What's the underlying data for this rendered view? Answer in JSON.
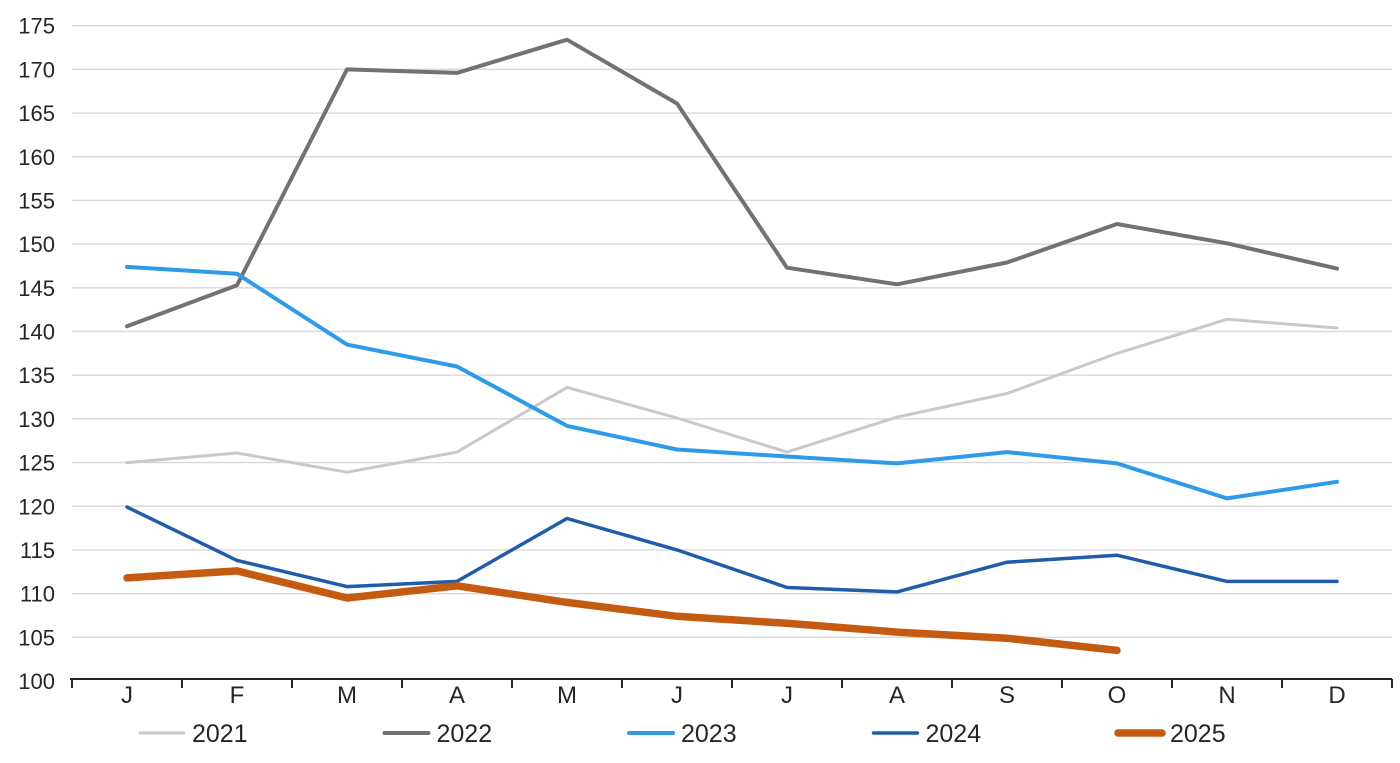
{
  "chart_data": {
    "type": "line",
    "title": "",
    "xlabel": "",
    "ylabel": "",
    "categories": [
      "J",
      "F",
      "M",
      "A",
      "M",
      "J",
      "J",
      "A",
      "S",
      "O",
      "N",
      "D"
    ],
    "y_axis": {
      "min": 100,
      "max": 175,
      "step": 5,
      "tick_labels": [
        "100",
        "105",
        "110",
        "115",
        "120",
        "125",
        "130",
        "135",
        "140",
        "145",
        "150",
        "155",
        "160",
        "165",
        "170",
        "175"
      ]
    },
    "series": [
      {
        "name": "2021",
        "color": "#C9C9C9",
        "line_width": 3,
        "values": [
          125.0,
          126.1,
          123.9,
          126.2,
          133.6,
          130.1,
          126.2,
          130.2,
          132.9,
          137.5,
          141.4,
          140.4
        ]
      },
      {
        "name": "2022",
        "color": "#767171",
        "line_width": 4,
        "values": [
          140.6,
          145.3,
          170.0,
          169.6,
          173.4,
          166.1,
          147.3,
          145.4,
          147.9,
          152.3,
          150.1,
          147.2
        ]
      },
      {
        "name": "2023",
        "color": "#2E9BE8",
        "line_width": 4,
        "values": [
          147.4,
          146.6,
          138.5,
          136.0,
          129.2,
          126.5,
          125.7,
          124.9,
          126.2,
          124.9,
          120.9,
          122.8
        ]
      },
      {
        "name": "2024",
        "color": "#1F5CA9",
        "line_width": 3.5,
        "values": [
          119.9,
          113.8,
          110.8,
          111.4,
          118.6,
          115.0,
          110.7,
          110.2,
          113.6,
          114.4,
          111.4,
          111.4
        ]
      },
      {
        "name": "2025",
        "color": "#C55A11",
        "line_width": 7.5,
        "values": [
          111.8,
          112.6,
          109.5,
          110.9,
          109.0,
          107.4,
          106.6,
          105.6,
          104.9,
          103.5
        ]
      }
    ],
    "grid": {
      "show_horizontal": true,
      "color": "#D9D9D9"
    },
    "axis": {
      "color": "#262626",
      "label_color": "#262626"
    },
    "legend": {
      "position": "bottom",
      "entries": [
        "2021",
        "2022",
        "2023",
        "2024",
        "2025"
      ]
    }
  }
}
